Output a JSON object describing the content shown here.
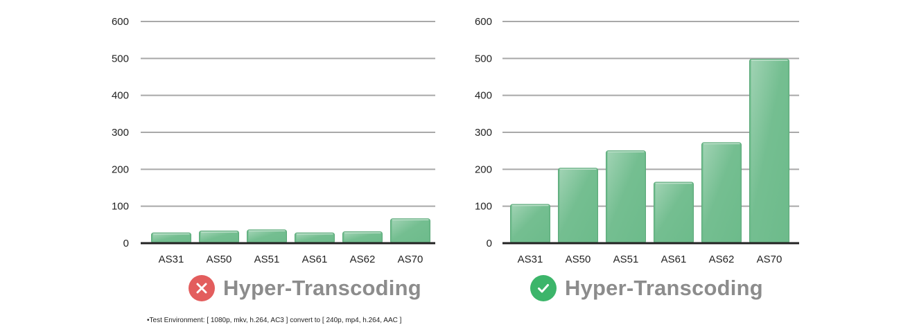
{
  "colors": {
    "bar_fill": "#6dbb8b",
    "bar_edge": "#5aa878",
    "grid": "#a8a8a8",
    "axis": "#222222",
    "caption_text": "#8c8c8c",
    "cross_badge": "#e35d5d",
    "check_badge": "#3cb56a"
  },
  "chart_data": [
    {
      "type": "bar",
      "categories": [
        "AS31",
        "AS50",
        "AS51",
        "AS61",
        "AS62",
        "AS70"
      ],
      "values": [
        28,
        33,
        36,
        28,
        31,
        66
      ],
      "ylim": [
        0,
        600
      ],
      "yticks": [
        0,
        100,
        200,
        300,
        400,
        500,
        600
      ],
      "grid": true,
      "caption": "Hyper-Transcoding",
      "caption_icon": "cross-icon"
    },
    {
      "type": "bar",
      "categories": [
        "AS31",
        "AS50",
        "AS51",
        "AS61",
        "AS62",
        "AS70"
      ],
      "values": [
        105,
        203,
        250,
        165,
        272,
        498
      ],
      "ylim": [
        0,
        600
      ],
      "yticks": [
        0,
        100,
        200,
        300,
        400,
        500,
        600
      ],
      "grid": true,
      "caption": "Hyper-Transcoding",
      "caption_icon": "check-icon"
    }
  ],
  "footnote": "•Test Environment: [ 1080p, mkv, h.264, AC3 ] convert to [ 240p, mp4, h.264, AAC ]"
}
